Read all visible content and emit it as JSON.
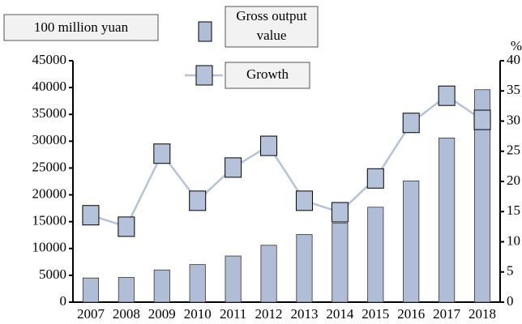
{
  "chart_data": {
    "type": "bar_line",
    "y_label": "100 million yuan",
    "y2_label": "%",
    "categories": [
      "2007",
      "2008",
      "2009",
      "2010",
      "2011",
      "2012",
      "2013",
      "2014",
      "2015",
      "2016",
      "2017",
      "2018"
    ],
    "series": [
      {
        "name": "Gross output value",
        "type": "bar",
        "color": "#b0bdd6",
        "values": [
          4500,
          4600,
          6000,
          7000,
          8600,
          10600,
          12600,
          14700,
          17700,
          22600,
          30600,
          39600
        ]
      },
      {
        "name": "Growth",
        "type": "line",
        "axis": "y2",
        "color": "#b4c3d9",
        "values": [
          14.4,
          12.5,
          24.6,
          16.8,
          22.3,
          25.9,
          16.8,
          14.9,
          20.5,
          29.7,
          34.2,
          30.2
        ]
      }
    ],
    "ylim": [
      0,
      45000
    ],
    "yticks": [
      0,
      5000,
      10000,
      15000,
      20000,
      25000,
      30000,
      35000,
      40000,
      45000
    ],
    "y2lim": [
      0,
      40
    ],
    "y2ticks": [
      0,
      5,
      10,
      15,
      20,
      25,
      30,
      35,
      40
    ]
  }
}
